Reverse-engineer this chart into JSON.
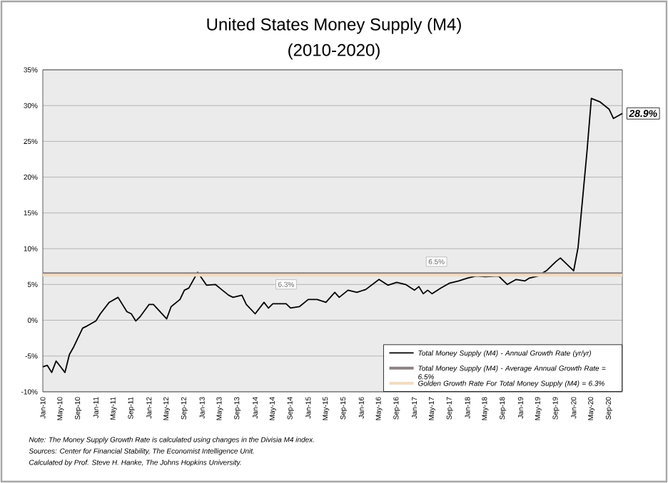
{
  "chart_data": {
    "type": "line",
    "title": "United States Money Supply (M4)",
    "subtitle": "(2010-2020)",
    "xlim": [
      "2010-01",
      "2020-12"
    ],
    "xticks": [
      {
        "value": "2010-01",
        "label": "Jan-10"
      },
      {
        "value": "2010-05",
        "label": "May-10"
      },
      {
        "value": "2010-09",
        "label": "Sep-10"
      },
      {
        "value": "2011-01",
        "label": "Jan-11"
      },
      {
        "value": "2011-05",
        "label": "May-11"
      },
      {
        "value": "2011-09",
        "label": "Sep-11"
      },
      {
        "value": "2012-01",
        "label": "Jan-12"
      },
      {
        "value": "2012-05",
        "label": "May-12"
      },
      {
        "value": "2012-09",
        "label": "Sep-12"
      },
      {
        "value": "2013-01",
        "label": "Jan-13"
      },
      {
        "value": "2013-05",
        "label": "May-13"
      },
      {
        "value": "2013-09",
        "label": "Sep-13"
      },
      {
        "value": "2014-01",
        "label": "Jan-14"
      },
      {
        "value": "2014-05",
        "label": "May-14"
      },
      {
        "value": "2014-09",
        "label": "Sep-14"
      },
      {
        "value": "2015-01",
        "label": "Jan-15"
      },
      {
        "value": "2015-05",
        "label": "May-15"
      },
      {
        "value": "2015-09",
        "label": "Sep-15"
      },
      {
        "value": "2016-01",
        "label": "Jan-16"
      },
      {
        "value": "2016-05",
        "label": "May-16"
      },
      {
        "value": "2016-09",
        "label": "Sep-16"
      },
      {
        "value": "2017-01",
        "label": "Jan-17"
      },
      {
        "value": "2017-05",
        "label": "May-17"
      },
      {
        "value": "2017-09",
        "label": "Sep-17"
      },
      {
        "value": "2018-01",
        "label": "Jan-18"
      },
      {
        "value": "2018-05",
        "label": "May-18"
      },
      {
        "value": "2018-09",
        "label": "Sep-18"
      },
      {
        "value": "2019-01",
        "label": "Jan-19"
      },
      {
        "value": "2019-05",
        "label": "May-19"
      },
      {
        "value": "2019-09",
        "label": "Sep-19"
      },
      {
        "value": "2020-01",
        "label": "Jan-20"
      },
      {
        "value": "2020-05",
        "label": "May-20"
      },
      {
        "value": "2020-09",
        "label": "Sep-20"
      }
    ],
    "ylim": [
      -10,
      35
    ],
    "yticks": [
      {
        "value": -10,
        "label": "-10%"
      },
      {
        "value": -5,
        "label": "-5%"
      },
      {
        "value": 0,
        "label": "0%"
      },
      {
        "value": 5,
        "label": "5%"
      },
      {
        "value": 10,
        "label": "10%"
      },
      {
        "value": 15,
        "label": "15%"
      },
      {
        "value": 20,
        "label": "20%"
      },
      {
        "value": 25,
        "label": "25%"
      },
      {
        "value": 30,
        "label": "30%"
      },
      {
        "value": 35,
        "label": "35%"
      }
    ],
    "grid": "y",
    "legend": "bottom right",
    "series": [
      {
        "name": "Total Money Supply (M4) - Annual Growth Rate (yr/yr)",
        "color": "#000000",
        "x": [
          "2010-01",
          "2010-02",
          "2010-03",
          "2010-04",
          "2010-05",
          "2010-06",
          "2010-07",
          "2010-08",
          "2010-10",
          "2010-11",
          "2011-01",
          "2011-02",
          "2011-04",
          "2011-06",
          "2011-08",
          "2011-09",
          "2011-10",
          "2011-11",
          "2012-01",
          "2012-02",
          "2012-05",
          "2012-06",
          "2012-08",
          "2012-09",
          "2012-10",
          "2012-12",
          "2013-02",
          "2013-04",
          "2013-05",
          "2013-07",
          "2013-08",
          "2013-10",
          "2013-11",
          "2014-01",
          "2014-03",
          "2014-04",
          "2014-05",
          "2014-08",
          "2014-09",
          "2014-11",
          "2015-01",
          "2015-03",
          "2015-05",
          "2015-07",
          "2015-08",
          "2015-10",
          "2015-12",
          "2016-02",
          "2016-05",
          "2016-07",
          "2016-09",
          "2016-11",
          "2017-01",
          "2017-02",
          "2017-03",
          "2017-04",
          "2017-05",
          "2017-07",
          "2017-09",
          "2017-11",
          "2018-01",
          "2018-03",
          "2018-05",
          "2018-08",
          "2018-10",
          "2018-12",
          "2019-02",
          "2019-03",
          "2019-05",
          "2019-07",
          "2019-09",
          "2019-10",
          "2019-12",
          "2020-01",
          "2020-02",
          "2020-04",
          "2020-05",
          "2020-07",
          "2020-09",
          "2020-10",
          "2020-12"
        ],
        "values": [
          -6.5,
          -6.3,
          -7.3,
          -5.7,
          -6.5,
          -7.3,
          -4.8,
          -3.7,
          -1.1,
          -0.8,
          -0.1,
          0.9,
          2.5,
          3.2,
          1.2,
          0.9,
          -0.1,
          0.5,
          2.2,
          2.2,
          0.2,
          1.9,
          2.9,
          4.2,
          4.5,
          6.7,
          4.9,
          5.0,
          4.5,
          3.5,
          3.2,
          3.5,
          2.2,
          0.9,
          2.5,
          1.7,
          2.3,
          2.3,
          1.7,
          1.9,
          2.9,
          2.9,
          2.5,
          3.9,
          3.2,
          4.2,
          3.9,
          4.3,
          5.7,
          4.9,
          5.3,
          5.0,
          4.2,
          4.7,
          3.7,
          4.2,
          3.7,
          4.5,
          5.2,
          5.5,
          5.9,
          6.2,
          6.1,
          6.2,
          5.0,
          5.7,
          5.5,
          5.9,
          6.2,
          7.0,
          8.2,
          8.7,
          7.5,
          6.9,
          10.2,
          23.5,
          31.0,
          30.5,
          29.5,
          28.2,
          28.9
        ]
      },
      {
        "name": "Total Money Supply (M4) - Average Annual Growth Rate = 6.5%",
        "color": "#8c8282",
        "x": [
          "2010-01",
          "2020-12"
        ],
        "values": [
          6.5,
          6.5
        ]
      },
      {
        "name": "Golden Growth Rate For Total Money Supply (M4) = 6.3%",
        "color": "#f3dcc3",
        "x": [
          "2010-01",
          "2020-12"
        ],
        "values": [
          6.3,
          6.3
        ]
      }
    ],
    "annotations": [
      {
        "text": "28.9%",
        "x": "2020-12",
        "y": 28.9
      },
      {
        "text": "6.5%",
        "x": "2017-06",
        "y": 6.5
      },
      {
        "text": "6.3%",
        "x": "2014-08",
        "y": 6.3
      },
      "Note: The Money Supply Growth Rate is calculated using changes in the Divisia M4 index.",
      "Sources: Center for Financial Stability, The Economist Intelligence Unit.",
      "Calculated by Prof. Steve H. Hanke, The Johns Hopkins University."
    ]
  }
}
